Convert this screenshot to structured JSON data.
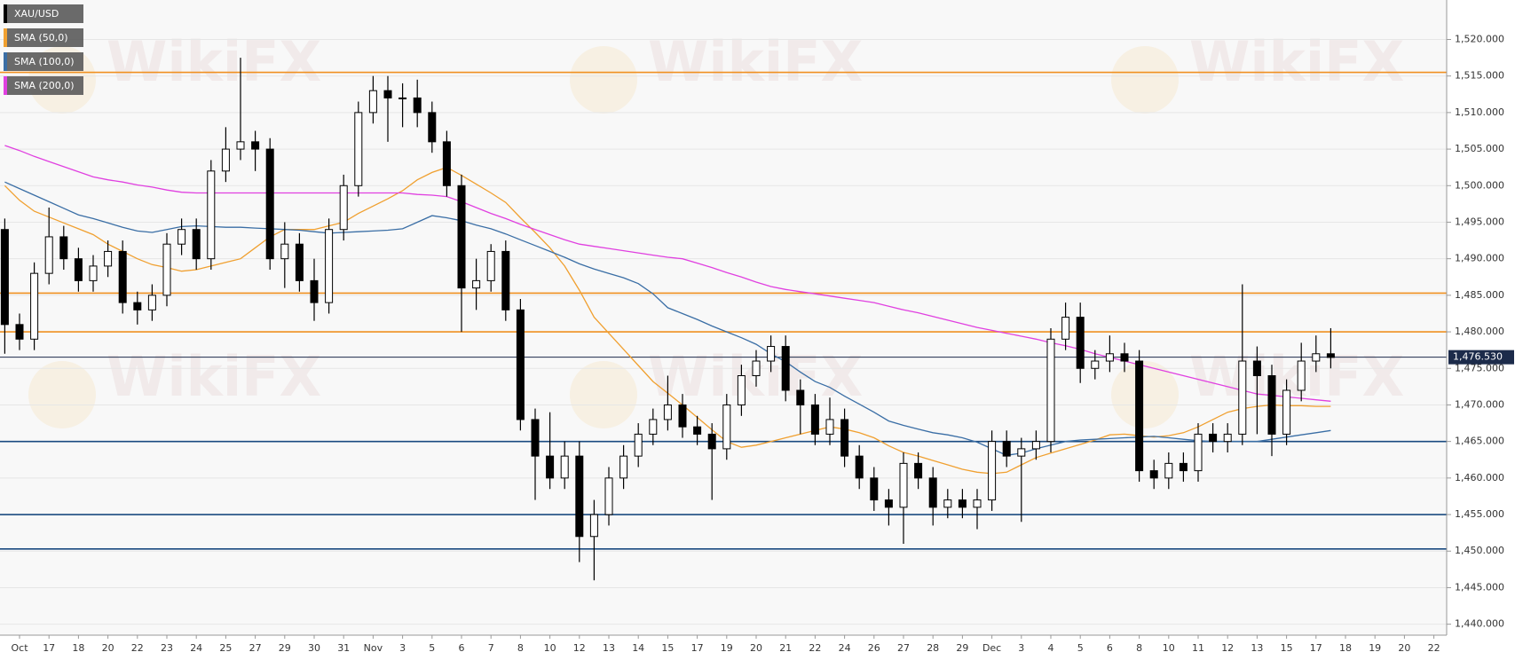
{
  "chart_data": {
    "type": "candlestick",
    "symbol": "XAU/USD",
    "watermark": "WikiFX",
    "categories": [
      null,
      "Oct",
      null,
      "17",
      null,
      "18",
      null,
      "20",
      null,
      "22",
      null,
      "23",
      null,
      "24",
      null,
      "25",
      null,
      "27",
      null,
      "29",
      null,
      "30",
      null,
      "31",
      null,
      "Nov",
      null,
      "3",
      null,
      "5",
      null,
      "6",
      null,
      "7",
      null,
      "8",
      null,
      "10",
      null,
      "12",
      null,
      "13",
      null,
      "14",
      null,
      "15",
      null,
      "17",
      null,
      "19",
      null,
      "20",
      null,
      "21",
      null,
      "22",
      null,
      "24",
      null,
      "26",
      null,
      "27",
      null,
      "28",
      null,
      "29",
      null,
      "Dec",
      null,
      "3",
      null,
      "4",
      null,
      "5",
      null,
      "6",
      null,
      "8",
      null,
      "10",
      null,
      "11",
      null,
      "12",
      null,
      "13",
      null,
      "15",
      null,
      "17",
      null,
      "18",
      null,
      "19",
      null,
      "20",
      null,
      "22"
    ],
    "open": [
      1494,
      1481,
      1479,
      1488,
      1493,
      1490,
      1487,
      1489,
      1491,
      1484,
      1483,
      1485,
      1492,
      1494,
      1490,
      1502,
      1505,
      1506,
      1505,
      1490,
      1492,
      1487,
      1484,
      1494,
      1500,
      1510,
      1513,
      1512,
      1512,
      1510,
      1506,
      1500,
      1486,
      1487,
      1491,
      1483,
      1468,
      1463,
      1460,
      1463,
      1452,
      1455,
      1460,
      1463,
      1466,
      1468,
      1470,
      1467,
      1466,
      1464,
      1470,
      1474,
      1476,
      1478,
      1472,
      1470,
      1466,
      1468,
      1463,
      1460,
      1457,
      1456,
      1462,
      1460,
      1456,
      1457,
      1456,
      1457,
      1465,
      1463,
      1464,
      1465,
      1479,
      1482,
      1475,
      1476,
      1477,
      1476,
      1461,
      1460,
      1462,
      1461,
      1466,
      1465,
      1466,
      1476,
      1474,
      1466,
      1472,
      1476,
      1477,
      null,
      null,
      null,
      null,
      null,
      null,
      null
    ],
    "high": [
      1495.5,
      1482.5,
      1489.5,
      1497,
      1494.5,
      1491.5,
      1490.5,
      1492.5,
      1492.5,
      1485.5,
      1486.5,
      1493.5,
      1495.5,
      1495.5,
      1503.5,
      1508,
      1517.5,
      1507.5,
      1506.5,
      1495,
      1493.5,
      1490,
      1495.5,
      1501.5,
      1511.5,
      1515,
      1515,
      1514,
      1514.5,
      1511.5,
      1507.5,
      1501.5,
      1490,
      1492,
      1492.5,
      1484.5,
      1469.5,
      1469,
      1465,
      1465,
      1457,
      1461.5,
      1464.5,
      1467.5,
      1469.5,
      1474,
      1471.5,
      1468.5,
      1467.5,
      1471.5,
      1475.5,
      1477.5,
      1479.5,
      1479.5,
      1473.5,
      1471.5,
      1471,
      1469.5,
      1464.5,
      1461.5,
      1458.5,
      1463.5,
      1463.5,
      1461.5,
      1458.5,
      1458.5,
      1458.5,
      1466.5,
      1466.5,
      1465.5,
      1466.5,
      1480.5,
      1484,
      1484,
      1477.5,
      1479.5,
      1478.5,
      1477.5,
      1462.5,
      1463.5,
      1463.5,
      1467.5,
      1467.5,
      1467.5,
      1486.5,
      1478,
      1475.5,
      1473.5,
      1478.5,
      1479.5,
      1480.5,
      null,
      null,
      null,
      null,
      null,
      null,
      null
    ],
    "low": [
      1477,
      1477.5,
      1477.5,
      1486.5,
      1488.5,
      1485.5,
      1485.5,
      1487.5,
      1482.5,
      1481,
      1481.5,
      1483.5,
      1490.5,
      1488.5,
      1488.5,
      1500.5,
      1503.5,
      1502,
      1488.5,
      1486,
      1485.5,
      1481.5,
      1482.5,
      1492.5,
      1498.5,
      1508.5,
      1506,
      1508,
      1508,
      1504.5,
      1498.5,
      1480,
      1483,
      1485.5,
      1481.5,
      1466.5,
      1457,
      1458.5,
      1458.5,
      1448.5,
      1446,
      1453.5,
      1458.5,
      1461.5,
      1464.5,
      1466.5,
      1465.5,
      1464.5,
      1457,
      1462.5,
      1468.5,
      1472.5,
      1474.5,
      1470.5,
      1466,
      1464.5,
      1464.5,
      1461.5,
      1458.5,
      1455.5,
      1453.5,
      1451,
      1458.5,
      1453.5,
      1454.5,
      1454.5,
      1453,
      1455.5,
      1461.5,
      1454,
      1462.5,
      1463.5,
      1477.5,
      1473,
      1473.5,
      1474.5,
      1474.5,
      1459.5,
      1458.5,
      1458.5,
      1459.5,
      1459.5,
      1463.5,
      1463.5,
      1464.5,
      1466,
      1463,
      1464.5,
      1470.5,
      1474.5,
      1475,
      null,
      null,
      null,
      null,
      null,
      null,
      null
    ],
    "close": [
      1481,
      1479,
      1488,
      1493,
      1490,
      1487,
      1489,
      1491,
      1484,
      1483,
      1485,
      1492,
      1494,
      1490,
      1502,
      1505,
      1506,
      1505,
      1490,
      1492,
      1487,
      1484,
      1494,
      1500,
      1510,
      1513,
      1512,
      1512,
      1510,
      1506,
      1500,
      1486,
      1487,
      1491,
      1483,
      1468,
      1463,
      1460,
      1463,
      1452,
      1455,
      1460,
      1463,
      1466,
      1468,
      1470,
      1467,
      1466,
      1464,
      1470,
      1474,
      1476,
      1478,
      1472,
      1470,
      1466,
      1468,
      1463,
      1460,
      1457,
      1456,
      1462,
      1460,
      1456,
      1457,
      1456,
      1457,
      1465,
      1463,
      1464,
      1465,
      1479,
      1482,
      1475,
      1476,
      1477,
      1476,
      1461,
      1460,
      1462,
      1461,
      1466,
      1465,
      1466,
      1476,
      1474,
      1466,
      1472,
      1476,
      1477,
      1476.5,
      null,
      null,
      null,
      null,
      null,
      null,
      null
    ],
    "color": "#000000",
    "series": [
      {
        "name": "SMA (50,0)",
        "color": "#f0a030",
        "values": [
          1500,
          1498,
          1496.5,
          1495.7,
          1494.9,
          1494.1,
          1493.3,
          1492,
          1491,
          1490,
          1489.2,
          1488.8,
          1488.3,
          1488.5,
          1489,
          1489.5,
          1490,
          1491.5,
          1493,
          1494,
          1494,
          1494,
          1494.5,
          1495,
          1496.2,
          1497.2,
          1498.2,
          1499.3,
          1500.8,
          1501.8,
          1502.5,
          1501.4,
          1500.2,
          1499,
          1497.7,
          1495.6,
          1493.6,
          1491.5,
          1489,
          1485.7,
          1482,
          1479.8,
          1477.6,
          1475.4,
          1473.2,
          1471.6,
          1470,
          1468.3,
          1466.6,
          1465,
          1464.2,
          1464.5,
          1465,
          1465.5,
          1466,
          1466.5,
          1467,
          1466.7,
          1466.2,
          1465.5,
          1464.4,
          1463.5,
          1463,
          1462.4,
          1461.8,
          1461.2,
          1460.8,
          1460.6,
          1460.8,
          1461.8,
          1462.8,
          1463.4,
          1464,
          1464.6,
          1465.2,
          1465.9,
          1466,
          1465.8,
          1465.6,
          1465.8,
          1466.2,
          1467,
          1468,
          1469,
          1469.5,
          1469.8,
          1470,
          1469.9,
          1469.9,
          1469.8,
          1469.8,
          null,
          null,
          null,
          null,
          null,
          null,
          null
        ]
      },
      {
        "name": "SMA (100,0)",
        "color": "#3a6ea5",
        "values": [
          1500.5,
          1499.6,
          1498.7,
          1497.8,
          1496.9,
          1496,
          1495.5,
          1494.9,
          1494.3,
          1493.8,
          1493.6,
          1494,
          1494.4,
          1494.5,
          1494.4,
          1494.3,
          1494.3,
          1494.2,
          1494.1,
          1494,
          1493.9,
          1493.7,
          1493.5,
          1493.6,
          1493.7,
          1493.8,
          1493.9,
          1494.1,
          1495,
          1495.9,
          1495.6,
          1495.2,
          1494.6,
          1494.1,
          1493.4,
          1492.6,
          1491.8,
          1491,
          1490.2,
          1489.3,
          1488.6,
          1488,
          1487.4,
          1486.6,
          1485.2,
          1483.3,
          1482.5,
          1481.7,
          1480.8,
          1480,
          1479.2,
          1478.3,
          1477,
          1475.9,
          1474.5,
          1473.2,
          1472.4,
          1471.2,
          1470.1,
          1469,
          1467.8,
          1467.2,
          1466.7,
          1466.2,
          1465.9,
          1465.5,
          1464.9,
          1464,
          1463.1,
          1463.4,
          1464,
          1464.5,
          1465,
          1465.2,
          1465.3,
          1465.4,
          1465.5,
          1465.6,
          1465.7,
          1465.5,
          1465.3,
          1465.1,
          1465,
          1465,
          1465,
          1465,
          1465.3,
          1465.6,
          1465.9,
          1466.2,
          1466.5,
          null,
          null,
          null,
          null,
          null,
          null,
          null
        ]
      },
      {
        "name": "SMA (200,0)",
        "color": "#e040e0",
        "values": [
          1505.5,
          1504.8,
          1504,
          1503.3,
          1502.6,
          1501.9,
          1501.2,
          1500.8,
          1500.5,
          1500.1,
          1499.8,
          1499.4,
          1499.1,
          1499,
          1499,
          1499,
          1499,
          1499,
          1499,
          1499,
          1499,
          1499,
          1499,
          1499,
          1499,
          1499,
          1499,
          1499,
          1498.8,
          1498.7,
          1498.5,
          1497.8,
          1497,
          1496.2,
          1495.5,
          1494.7,
          1494,
          1493.3,
          1492.6,
          1492,
          1491.7,
          1491.4,
          1491.1,
          1490.8,
          1490.5,
          1490.2,
          1490,
          1489.4,
          1488.8,
          1488.1,
          1487.5,
          1486.8,
          1486.2,
          1485.8,
          1485.5,
          1485.2,
          1484.9,
          1484.6,
          1484.3,
          1484,
          1483.5,
          1483,
          1482.6,
          1482.1,
          1481.6,
          1481.1,
          1480.6,
          1480.2,
          1479.8,
          1479.4,
          1479,
          1478.5,
          1478.1,
          1477.6,
          1477,
          1476.5,
          1476,
          1475.5,
          1475,
          1474.5,
          1474,
          1473.5,
          1473,
          1472.5,
          1472,
          1471.5,
          1471.3,
          1471.1,
          1470.9,
          1470.7,
          1470.5,
          null,
          null,
          null,
          null,
          null,
          null,
          null
        ]
      }
    ],
    "levels": [
      {
        "value": 1515.5,
        "color": "#f09020"
      },
      {
        "value": 1485.3,
        "color": "#f09020"
      },
      {
        "value": 1480,
        "color": "#f09020"
      },
      {
        "value": 1465,
        "color": "#1a4a80"
      },
      {
        "value": 1455,
        "color": "#1a4a80"
      },
      {
        "value": 1450.3,
        "color": "#1a4a80"
      }
    ],
    "price_line": {
      "value": 1476.53,
      "label": "1,476.530",
      "color": "#1c2b4a"
    },
    "ylim": [
      1438.5,
      1525.4
    ],
    "yticks": [
      {
        "value": 1440,
        "label": "1,440.000"
      },
      {
        "value": 1445,
        "label": "1,445.000"
      },
      {
        "value": 1450,
        "label": "1,450.000"
      },
      {
        "value": 1455,
        "label": "1,455.000"
      },
      {
        "value": 1460,
        "label": "1,460.000"
      },
      {
        "value": 1465,
        "label": "1,465.000"
      },
      {
        "value": 1470,
        "label": "1,470.000"
      },
      {
        "value": 1475,
        "label": "1,475.000"
      },
      {
        "value": 1480,
        "label": "1,480.000"
      },
      {
        "value": 1485,
        "label": "1,485.000"
      },
      {
        "value": 1490,
        "label": "1,490.000"
      },
      {
        "value": 1495,
        "label": "1,495.000"
      },
      {
        "value": 1500,
        "label": "1,500.000"
      },
      {
        "value": 1505,
        "label": "1,505.000"
      },
      {
        "value": 1510,
        "label": "1,510.000"
      },
      {
        "value": 1515,
        "label": "1,515.000"
      },
      {
        "value": 1520,
        "label": "1,520.000"
      }
    ],
    "grid": true
  }
}
